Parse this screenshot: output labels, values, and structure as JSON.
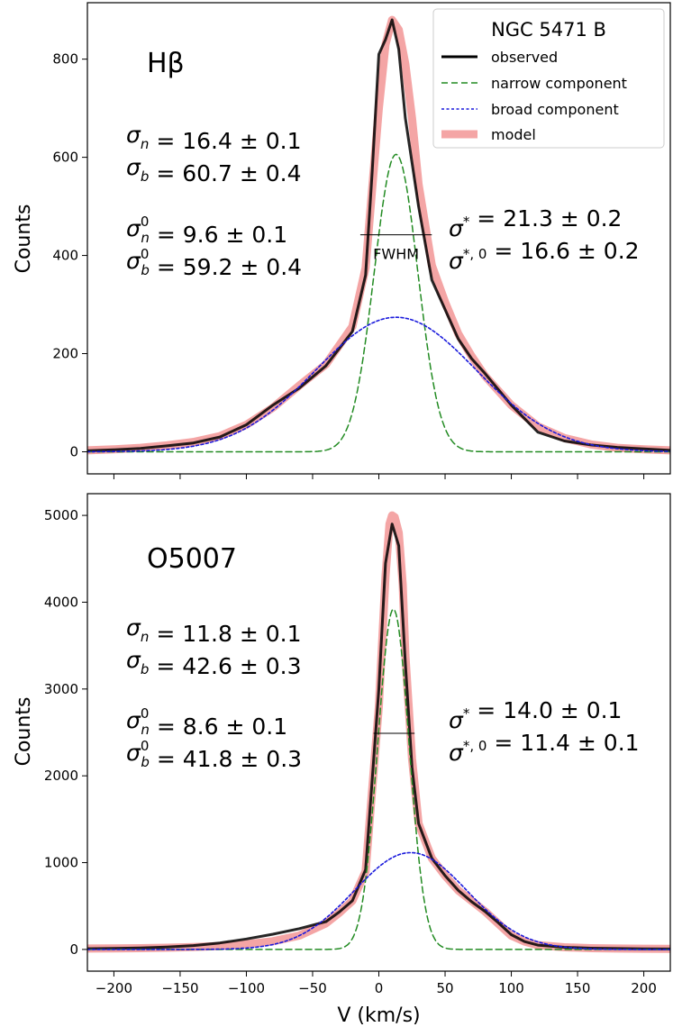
{
  "chart_data": [
    {
      "type": "line",
      "panel": "top",
      "title": "Hβ",
      "xlabel": "",
      "ylabel": "Counts",
      "xlim": [
        -220,
        220
      ],
      "ylim": [
        -45,
        915
      ],
      "xticks": [
        -200,
        -150,
        -100,
        -50,
        0,
        50,
        100,
        150,
        200
      ],
      "yticks": [
        0,
        200,
        400,
        600,
        800
      ],
      "fwhm": {
        "label": "FWHM",
        "x1": -14,
        "x2": 40,
        "y": 442
      },
      "legend": {
        "title": "NGC 5471 B",
        "location": "top-right",
        "entries": [
          "observed",
          "narrow component",
          "broad component",
          "model"
        ]
      },
      "annotations_left": [
        {
          "lhs": "σ",
          "sub": "n",
          "sup": "",
          "rhs": " = 16.4 ± 0.1"
        },
        {
          "lhs": "σ",
          "sub": "b",
          "sup": "",
          "rhs": " = 60.7 ± 0.4"
        },
        {
          "lhs": "σ",
          "sub": "n",
          "sup": "0",
          "rhs": " = 9.6 ± 0.1"
        },
        {
          "lhs": "σ",
          "sub": "b",
          "sup": "0",
          "rhs": " = 59.2 ± 0.4"
        }
      ],
      "annotations_right": [
        {
          "lhs": "σ",
          "sub": "",
          "sup": "*",
          "rhs": " = 21.3 ± 0.2"
        },
        {
          "lhs": "σ",
          "sub": "",
          "sup": "*, 0",
          "rhs": " = 16.6 ± 0.2"
        }
      ],
      "series": [
        {
          "name": "model",
          "color": "#f4a5a5",
          "x": [
            -220,
            -200,
            -180,
            -160,
            -140,
            -120,
            -100,
            -80,
            -60,
            -40,
            -20,
            -10,
            0,
            5,
            10,
            15,
            20,
            25,
            30,
            40,
            50,
            60,
            70,
            80,
            100,
            120,
            140,
            160,
            180,
            200,
            220
          ],
          "values": [
            3,
            5,
            8,
            13,
            20,
            32,
            55,
            90,
            135,
            178,
            255,
            375,
            700,
            830,
            880,
            860,
            790,
            680,
            545,
            380,
            305,
            240,
            195,
            155,
            95,
            52,
            28,
            15,
            8,
            5,
            3
          ]
        },
        {
          "name": "observed",
          "color": "#000000",
          "x": [
            -220,
            -200,
            -180,
            -160,
            -140,
            -120,
            -100,
            -80,
            -60,
            -40,
            -20,
            -10,
            -5,
            0,
            5,
            10,
            15,
            20,
            30,
            40,
            50,
            60,
            70,
            80,
            100,
            120,
            140,
            160,
            180,
            200,
            220
          ],
          "values": [
            2,
            4,
            7,
            12,
            18,
            30,
            55,
            95,
            130,
            175,
            245,
            360,
            570,
            810,
            840,
            880,
            820,
            680,
            500,
            350,
            290,
            230,
            190,
            160,
            95,
            40,
            22,
            14,
            9,
            6,
            3
          ]
        },
        {
          "name": "narrow component",
          "color": "#228b22",
          "gauss": {
            "amp": 606,
            "mu": 13,
            "sigma": 16.4,
            "from": -220,
            "to": 220
          }
        },
        {
          "name": "broad component",
          "color": "#1a1adc",
          "gauss": {
            "amp": 274,
            "mu": 13,
            "sigma": 60.7,
            "from": -220,
            "to": 220
          }
        }
      ]
    },
    {
      "type": "line",
      "panel": "bottom",
      "title": "O5007",
      "xlabel": "V (km/s)",
      "ylabel": "Counts",
      "xlim": [
        -220,
        220
      ],
      "ylim": [
        -250,
        5250
      ],
      "xticks": [
        -200,
        -150,
        -100,
        -50,
        0,
        50,
        100,
        150,
        200
      ],
      "yticks": [
        0,
        1000,
        2000,
        3000,
        4000,
        5000
      ],
      "fwhm": {
        "label": "",
        "x1": -4,
        "x2": 27,
        "y": 2490
      },
      "annotations_left": [
        {
          "lhs": "σ",
          "sub": "n",
          "sup": "",
          "rhs": " = 11.8 ± 0.1"
        },
        {
          "lhs": "σ",
          "sub": "b",
          "sup": "",
          "rhs": " = 42.6 ± 0.3"
        },
        {
          "lhs": "σ",
          "sub": "n",
          "sup": "0",
          "rhs": " = 8.6 ± 0.1"
        },
        {
          "lhs": "σ",
          "sub": "b",
          "sup": "0",
          "rhs": " = 41.8 ± 0.3"
        }
      ],
      "annotations_right": [
        {
          "lhs": "σ",
          "sub": "",
          "sup": "*",
          "rhs": " = 14.0 ± 0.1"
        },
        {
          "lhs": "σ",
          "sub": "",
          "sup": "*, 0",
          "rhs": " = 11.4 ± 0.1"
        }
      ],
      "series": [
        {
          "name": "model",
          "color": "#f4a5a5",
          "x": [
            -220,
            -200,
            -180,
            -160,
            -140,
            -120,
            -100,
            -80,
            -60,
            -40,
            -30,
            -20,
            -10,
            0,
            5,
            8,
            10,
            12,
            15,
            18,
            20,
            25,
            30,
            40,
            50,
            60,
            70,
            80,
            90,
            100,
            110,
            120,
            140,
            160,
            180,
            200,
            220
          ],
          "values": [
            10,
            12,
            15,
            20,
            28,
            40,
            60,
            95,
            160,
            300,
            420,
            560,
            900,
            2800,
            4300,
            4900,
            5000,
            4980,
            4800,
            4200,
            3400,
            2200,
            1450,
            1050,
            850,
            680,
            560,
            440,
            300,
            160,
            90,
            50,
            25,
            15,
            10,
            8,
            6
          ]
        },
        {
          "name": "observed",
          "color": "#000000",
          "x": [
            -220,
            -200,
            -180,
            -160,
            -140,
            -120,
            -100,
            -80,
            -60,
            -40,
            -30,
            -20,
            -10,
            0,
            5,
            10,
            15,
            20,
            25,
            30,
            40,
            50,
            60,
            70,
            80,
            90,
            100,
            110,
            120,
            140,
            160,
            180,
            200,
            220
          ],
          "values": [
            8,
            12,
            18,
            28,
            45,
            75,
            120,
            175,
            240,
            320,
            430,
            560,
            920,
            3000,
            4450,
            4900,
            4650,
            3300,
            2100,
            1450,
            1050,
            850,
            680,
            550,
            440,
            310,
            170,
            90,
            50,
            25,
            15,
            10,
            7,
            5
          ]
        },
        {
          "name": "narrow component",
          "color": "#228b22",
          "gauss": {
            "amp": 3920,
            "mu": 11,
            "sigma": 11.8,
            "from": -220,
            "to": 220
          }
        },
        {
          "name": "broad component",
          "color": "#1a1adc",
          "gauss": {
            "amp": 1115,
            "mu": 24,
            "sigma": 42.6,
            "from": -220,
            "to": 220
          }
        }
      ]
    }
  ]
}
